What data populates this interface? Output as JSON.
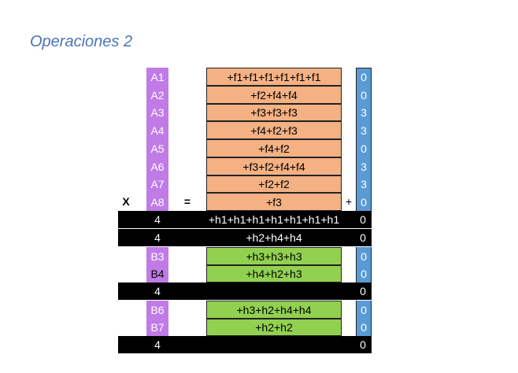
{
  "title": "Operaciones 2",
  "operators": {
    "multiply": "X",
    "equals": "=",
    "plus": "+"
  },
  "a_labels": [
    "A1",
    "A2",
    "A3",
    "A4",
    "A5",
    "A6",
    "A7",
    "A8"
  ],
  "f_formulas": [
    "+f1+f1+f1+f1+f1+f1",
    "+f2+f4+f4",
    "+f3+f3+f3",
    "+f4+f2+f3",
    "+f4+f2",
    "+f3+f2+f4+f4",
    "+f2+f2",
    "+f3"
  ],
  "f_digits": [
    "0",
    "0",
    "3",
    "3",
    "0",
    "3",
    "3",
    "0"
  ],
  "black_rows": [
    {
      "left": "4",
      "mid": "+h1+h1+h1+h1+h1+h1+h1",
      "right": "0"
    },
    {
      "left": "4",
      "mid": "+h2+h4+h4",
      "right": "0"
    },
    {
      "left": "4",
      "mid": "",
      "right": "0"
    },
    {
      "left": "4",
      "mid": "",
      "right": "0"
    }
  ],
  "green_rows": [
    {
      "label": "B3",
      "formula": "+h3+h3+h3",
      "digit": "0"
    },
    {
      "label": "B4",
      "formula": "+h4+h2+h3",
      "digit": "0"
    },
    {
      "label": "B6",
      "formula": "+h3+h2+h4+h4",
      "digit": "0"
    },
    {
      "label": "B7",
      "formula": "+h2+h2",
      "digit": "0"
    }
  ],
  "colors": {
    "purple": "#c07be6",
    "salmon": "#f4b183",
    "green": "#92d050",
    "blue": "#5b9bd5",
    "black": "#000000",
    "title": "#4a74b8"
  }
}
